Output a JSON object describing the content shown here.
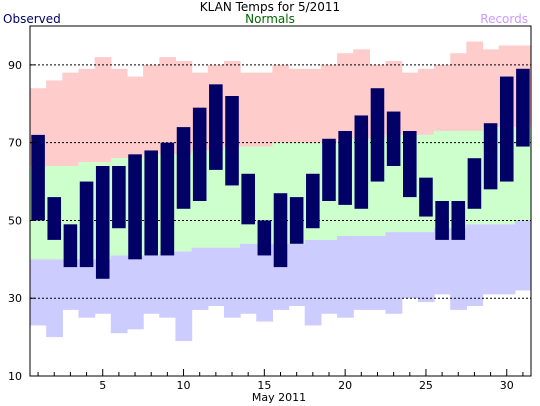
{
  "chart_data": {
    "type": "bar",
    "title": "KLAN Temps for 5/2011",
    "xlabel": "May 2011",
    "ylabel": "",
    "legend": {
      "observed": "Observed",
      "normals": "Normals",
      "records": "Records"
    },
    "colors": {
      "observed": "#000066",
      "normals_fill": "#ccffcc",
      "normals_text": "#006600",
      "record_high_fill": "#ffcccc",
      "record_low_fill": "#ccccff",
      "records_text": "#cc99ff",
      "grid": "#000000"
    },
    "xlim": [
      0.5,
      31.5
    ],
    "ylim": [
      10,
      100
    ],
    "yticks": [
      10,
      30,
      50,
      70,
      90
    ],
    "xticks": [
      5,
      10,
      15,
      20,
      25,
      30
    ],
    "grid": true,
    "days": [
      1,
      2,
      3,
      4,
      5,
      6,
      7,
      8,
      9,
      10,
      11,
      12,
      13,
      14,
      15,
      16,
      17,
      18,
      19,
      20,
      21,
      22,
      23,
      24,
      25,
      26,
      27,
      28,
      29,
      30,
      31
    ],
    "observed_high": [
      72,
      56,
      49,
      60,
      64,
      64,
      67,
      68,
      70,
      74,
      79,
      85,
      82,
      62,
      50,
      57,
      56,
      62,
      71,
      73,
      77,
      84,
      78,
      73,
      61,
      55,
      55,
      66,
      75,
      87,
      89
    ],
    "observed_low": [
      50,
      45,
      38,
      38,
      35,
      48,
      40,
      41,
      41,
      53,
      55,
      63,
      59,
      49,
      41,
      38,
      44,
      48,
      55,
      54,
      53,
      60,
      64,
      56,
      51,
      45,
      45,
      53,
      58,
      60,
      69
    ],
    "normal_high": [
      64,
      64,
      64,
      65,
      65,
      66,
      66,
      67,
      67,
      67,
      68,
      68,
      69,
      69,
      69,
      70,
      70,
      70,
      70,
      71,
      71,
      71,
      72,
      72,
      72,
      73,
      73,
      73,
      74,
      74,
      74
    ],
    "normal_low": [
      40,
      40,
      40,
      40,
      40,
      41,
      41,
      41,
      42,
      42,
      43,
      43,
      43,
      44,
      44,
      44,
      44,
      45,
      45,
      46,
      46,
      46,
      47,
      47,
      47,
      48,
      48,
      49,
      49,
      49,
      50
    ],
    "record_high": [
      84,
      86,
      88,
      89,
      92,
      89,
      87,
      90,
      92,
      91,
      88,
      90,
      91,
      88,
      88,
      90,
      89,
      89,
      90,
      93,
      94,
      90,
      91,
      88,
      89,
      90,
      93,
      96,
      94,
      95,
      95
    ],
    "record_low": [
      23,
      20,
      27,
      25,
      26,
      21,
      22,
      26,
      25,
      19,
      27,
      28,
      25,
      26,
      24,
      27,
      28,
      23,
      26,
      25,
      27,
      27,
      26,
      30,
      29,
      31,
      27,
      28,
      31,
      31,
      32
    ]
  }
}
